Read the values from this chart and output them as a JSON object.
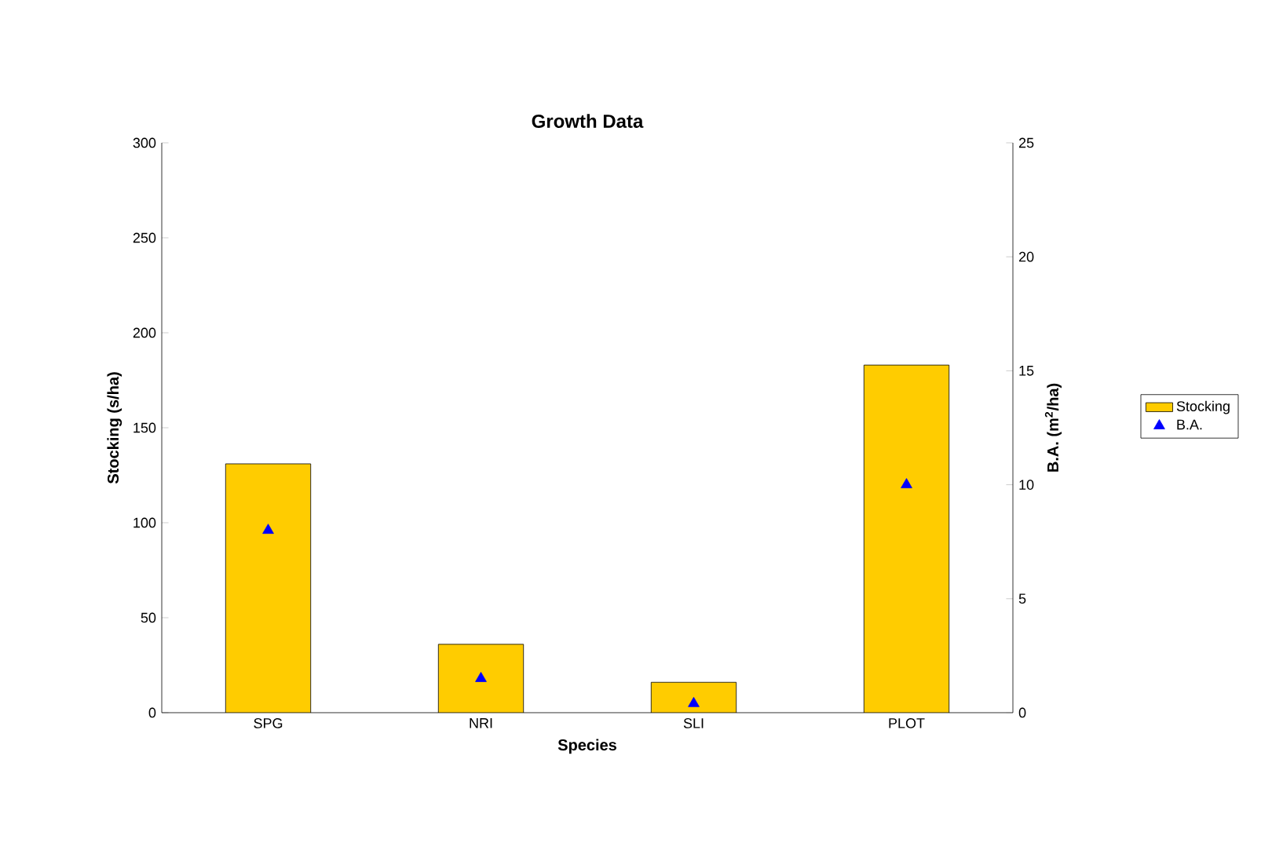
{
  "chart_data": {
    "type": "bar",
    "title": "Growth Data",
    "xlabel": "Species",
    "ylabel": "Stocking (s/ha)",
    "y2label": "B.A. (m$^{2}$/ha)",
    "categories": [
      "SPG",
      "NRI",
      "SLI",
      "PLOT"
    ],
    "series": [
      {
        "name": "Stocking",
        "color": "#ffcc00",
        "values": [
          131,
          36,
          16,
          183
        ]
      },
      {
        "name": "B.A.",
        "type": "scatter",
        "axis": "y2",
        "color": "#0000ff",
        "marker": "triangle",
        "values": [
          8.0,
          1.5,
          0.4,
          10.0
        ]
      }
    ],
    "ylim": [
      0,
      300
    ],
    "yticks": [
      0,
      50,
      100,
      150,
      200,
      250,
      300
    ],
    "y2lim": [
      0,
      25
    ],
    "y2ticks": [
      0,
      5,
      10,
      15,
      20,
      25
    ],
    "grid": false,
    "legend": "right"
  }
}
